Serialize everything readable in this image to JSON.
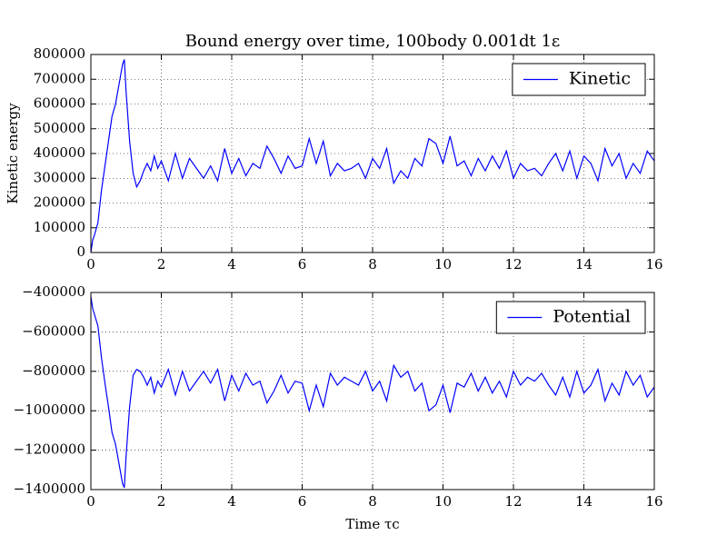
{
  "chart_data": [
    {
      "type": "line",
      "title": "Bound energy over time, 100body 0.001dt 1ε",
      "ylabel": "Kinetic energy",
      "xlim": [
        0,
        16
      ],
      "xticks": [
        0,
        2,
        4,
        6,
        8,
        10,
        12,
        14,
        16
      ],
      "ylim": [
        0,
        800000
      ],
      "yticks": [
        0,
        100000,
        200000,
        300000,
        400000,
        500000,
        600000,
        700000,
        800000
      ],
      "grid": true,
      "legend": "upper right",
      "x": [
        0,
        0.05,
        0.1,
        0.2,
        0.3,
        0.4,
        0.5,
        0.6,
        0.7,
        0.8,
        0.9,
        0.95,
        1.0,
        1.1,
        1.2,
        1.3,
        1.4,
        1.5,
        1.6,
        1.7,
        1.8,
        1.9,
        2.0,
        2.2,
        2.4,
        2.6,
        2.8,
        3.0,
        3.2,
        3.4,
        3.6,
        3.8,
        4.0,
        4.2,
        4.4,
        4.6,
        4.8,
        5.0,
        5.2,
        5.4,
        5.6,
        5.8,
        6.0,
        6.2,
        6.4,
        6.6,
        6.8,
        7.0,
        7.2,
        7.4,
        7.6,
        7.8,
        8.0,
        8.2,
        8.4,
        8.6,
        8.8,
        9.0,
        9.2,
        9.4,
        9.6,
        9.8,
        10.0,
        10.2,
        10.4,
        10.6,
        10.8,
        11.0,
        11.2,
        11.4,
        11.6,
        11.8,
        12.0,
        12.2,
        12.4,
        12.6,
        12.8,
        13.0,
        13.2,
        13.4,
        13.6,
        13.8,
        14.0,
        14.2,
        14.4,
        14.6,
        14.8,
        15.0,
        15.2,
        15.4,
        15.6,
        15.8,
        16.0
      ],
      "series": [
        {
          "name": "Kinetic",
          "color": "#0000ff",
          "values": [
            0,
            50000,
            70000,
            120000,
            250000,
            350000,
            450000,
            550000,
            600000,
            680000,
            760000,
            780000,
            650000,
            450000,
            320000,
            265000,
            290000,
            330000,
            360000,
            330000,
            390000,
            340000,
            370000,
            290000,
            400000,
            300000,
            380000,
            340000,
            300000,
            350000,
            290000,
            420000,
            320000,
            380000,
            310000,
            360000,
            340000,
            430000,
            380000,
            320000,
            390000,
            340000,
            350000,
            460000,
            360000,
            450000,
            310000,
            360000,
            330000,
            340000,
            360000,
            300000,
            380000,
            340000,
            420000,
            280000,
            330000,
            300000,
            380000,
            350000,
            460000,
            440000,
            360000,
            470000,
            350000,
            370000,
            310000,
            380000,
            330000,
            390000,
            340000,
            410000,
            300000,
            360000,
            330000,
            340000,
            310000,
            360000,
            400000,
            330000,
            410000,
            300000,
            390000,
            360000,
            290000,
            420000,
            350000,
            400000,
            300000,
            360000,
            320000,
            410000,
            370000
          ]
        }
      ]
    },
    {
      "type": "line",
      "xlabel": "Time τc",
      "xlim": [
        0,
        16
      ],
      "xticks": [
        0,
        2,
        4,
        6,
        8,
        10,
        12,
        14,
        16
      ],
      "ylim": [
        -1400000,
        -400000
      ],
      "yticks": [
        {
          "value": -1400000,
          "label": "−1400000"
        },
        {
          "value": -1200000,
          "label": "−1200000"
        },
        {
          "value": -1000000,
          "label": "−1000000"
        },
        {
          "value": -800000,
          "label": "−800000"
        },
        {
          "value": -600000,
          "label": "−600000"
        },
        {
          "value": -400000,
          "label": "−400000"
        }
      ],
      "grid": true,
      "legend": "upper right",
      "x": [
        0,
        0.05,
        0.1,
        0.2,
        0.3,
        0.4,
        0.5,
        0.6,
        0.7,
        0.8,
        0.9,
        0.95,
        1.0,
        1.1,
        1.2,
        1.3,
        1.4,
        1.5,
        1.6,
        1.7,
        1.8,
        1.9,
        2.0,
        2.2,
        2.4,
        2.6,
        2.8,
        3.0,
        3.2,
        3.4,
        3.6,
        3.8,
        4.0,
        4.2,
        4.4,
        4.6,
        4.8,
        5.0,
        5.2,
        5.4,
        5.6,
        5.8,
        6.0,
        6.2,
        6.4,
        6.6,
        6.8,
        7.0,
        7.2,
        7.4,
        7.6,
        7.8,
        8.0,
        8.2,
        8.4,
        8.6,
        8.8,
        9.0,
        9.2,
        9.4,
        9.6,
        9.8,
        10.0,
        10.2,
        10.4,
        10.6,
        10.8,
        11.0,
        11.2,
        11.4,
        11.6,
        11.8,
        12.0,
        12.2,
        12.4,
        12.6,
        12.8,
        13.0,
        13.2,
        13.4,
        13.6,
        13.8,
        14.0,
        14.2,
        14.4,
        14.6,
        14.8,
        15.0,
        15.2,
        15.4,
        15.6,
        15.8,
        16.0
      ],
      "series": [
        {
          "name": "Potential",
          "color": "#0000ff",
          "values": [
            -420000,
            -480000,
            -510000,
            -570000,
            -730000,
            -860000,
            -980000,
            -1110000,
            -1170000,
            -1270000,
            -1370000,
            -1390000,
            -1230000,
            -980000,
            -820000,
            -790000,
            -800000,
            -830000,
            -870000,
            -830000,
            -910000,
            -850000,
            -880000,
            -790000,
            -920000,
            -800000,
            -900000,
            -850000,
            -800000,
            -860000,
            -790000,
            -950000,
            -820000,
            -900000,
            -810000,
            -870000,
            -850000,
            -960000,
            -900000,
            -820000,
            -910000,
            -850000,
            -860000,
            -1000000,
            -870000,
            -980000,
            -810000,
            -870000,
            -830000,
            -850000,
            -870000,
            -800000,
            -900000,
            -850000,
            -950000,
            -770000,
            -830000,
            -800000,
            -900000,
            -860000,
            -1000000,
            -970000,
            -870000,
            -1010000,
            -860000,
            -880000,
            -810000,
            -900000,
            -830000,
            -910000,
            -850000,
            -930000,
            -800000,
            -870000,
            -830000,
            -850000,
            -810000,
            -870000,
            -920000,
            -830000,
            -930000,
            -800000,
            -910000,
            -870000,
            -790000,
            -950000,
            -860000,
            -920000,
            -800000,
            -870000,
            -820000,
            -930000,
            -880000
          ]
        }
      ]
    }
  ]
}
